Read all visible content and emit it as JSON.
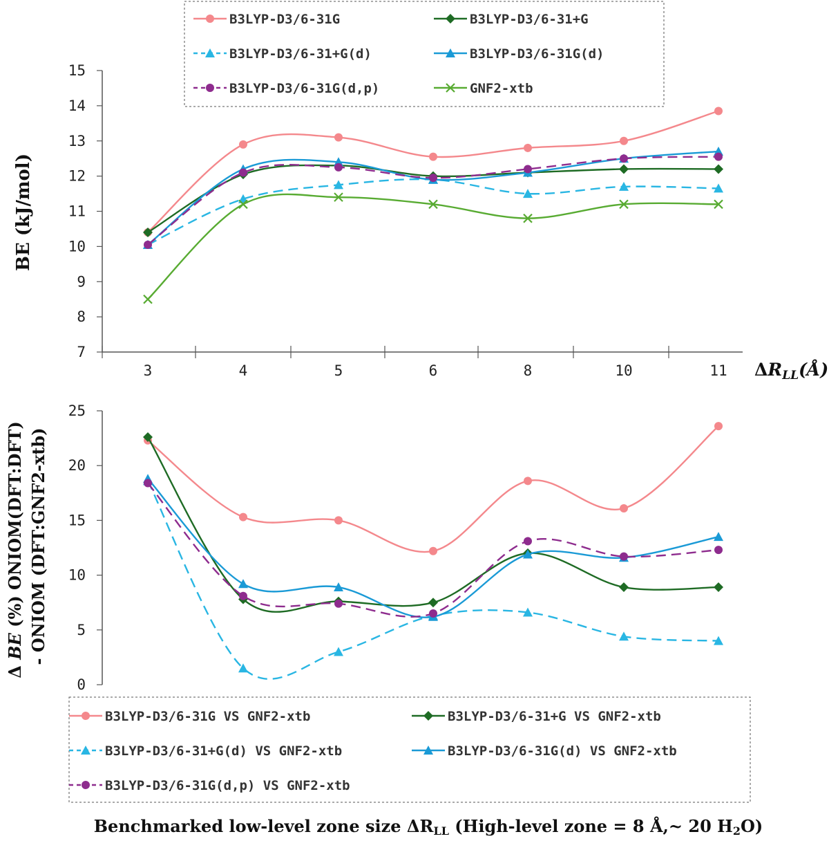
{
  "figure": {
    "bottom_xlabel": {
      "prefix": "Benchmarked low-level zone size ΔR",
      "sub": "LL",
      "middle": " (High-level zone = 8 Å,~ 20 H",
      "sub2": "2",
      "suffix": "O)"
    }
  },
  "chart_data": [
    {
      "type": "line",
      "id": "top",
      "title": "",
      "ylabel": "BE (kJ/mol)",
      "xlabel_delta": "Δ",
      "xlabel_r": "R",
      "xlabel_sub": "LL",
      "xlabel_unit": "(Å)",
      "categories": [
        "3",
        "4",
        "5",
        "6",
        "8",
        "10",
        "11"
      ],
      "ylim": [
        7,
        15
      ],
      "yticks": [
        "7",
        "8",
        "9",
        "10",
        "11",
        "12",
        "13",
        "14",
        "15"
      ],
      "legend_position": "top-center",
      "series": [
        {
          "name": "B3LYP-D3/6-31G",
          "color": "#f4888c",
          "marker": "circle",
          "dashed": false,
          "values": [
            10.4,
            12.9,
            13.1,
            12.55,
            12.8,
            13.0,
            13.85
          ]
        },
        {
          "name": "B3LYP-D3/6-31+G",
          "color": "#1e6b24",
          "marker": "diamond",
          "dashed": false,
          "values": [
            10.4,
            12.05,
            12.3,
            12.0,
            12.1,
            12.2,
            12.2
          ]
        },
        {
          "name": "B3LYP-D3/6-31+G(d)",
          "color": "#29b6e3",
          "marker": "triangle",
          "dashed": true,
          "values": [
            10.05,
            11.35,
            11.75,
            11.9,
            11.5,
            11.7,
            11.65
          ]
        },
        {
          "name": "B3LYP-D3/6-31G(d)",
          "color": "#1a9ad6",
          "marker": "triangle",
          "dashed": false,
          "values": [
            10.05,
            12.2,
            12.4,
            11.9,
            12.1,
            12.5,
            12.7
          ]
        },
        {
          "name": "B3LYP-D3/6-31G(d,p)",
          "color": "#8e2c8e",
          "marker": "circle",
          "dashed": true,
          "values": [
            10.05,
            12.1,
            12.25,
            11.95,
            12.2,
            12.5,
            12.55
          ]
        },
        {
          "name": "GNF2-xtb",
          "color": "#58ab32",
          "marker": "x",
          "dashed": false,
          "values": [
            8.5,
            11.2,
            11.4,
            11.2,
            10.8,
            11.2,
            11.2
          ]
        }
      ]
    },
    {
      "type": "line",
      "id": "bottom",
      "title": "",
      "ylabel_line1_prefix": "Δ ",
      "ylabel_line1_italic": "BE",
      "ylabel_line1_suffix": " (%) ONIOM(DFT:DFT)",
      "ylabel_line2": "- ONIOM (DFT:GNF2-xtb)",
      "categories": [
        "3",
        "4",
        "5",
        "6",
        "8",
        "10",
        "11"
      ],
      "ylim": [
        0,
        25
      ],
      "yticks": [
        "0",
        "5",
        "10",
        "15",
        "20",
        "25"
      ],
      "legend_position": "bottom",
      "series": [
        {
          "name": "B3LYP-D3/6-31G VS GNF2-xtb",
          "color": "#f4888c",
          "marker": "circle",
          "dashed": false,
          "values": [
            22.3,
            15.3,
            15.0,
            12.2,
            18.6,
            16.1,
            23.6
          ]
        },
        {
          "name": "B3LYP-D3/6-31+G VS GNF2-xtb",
          "color": "#1e6b24",
          "marker": "diamond",
          "dashed": false,
          "values": [
            22.6,
            7.8,
            7.6,
            7.5,
            12.0,
            8.9,
            8.9
          ]
        },
        {
          "name": "B3LYP-D3/6-31+G(d) VS GNF2-xtb",
          "color": "#29b6e3",
          "marker": "triangle",
          "dashed": true,
          "values": [
            18.6,
            1.5,
            3.0,
            6.3,
            6.6,
            4.4,
            4.0
          ]
        },
        {
          "name": "B3LYP-D3/6-31G(d) VS GNF2-xtb",
          "color": "#1a9ad6",
          "marker": "triangle",
          "dashed": false,
          "values": [
            18.8,
            9.2,
            8.9,
            6.2,
            11.9,
            11.6,
            13.5
          ]
        },
        {
          "name": "B3LYP-D3/6-31G(d,p) VS GNF2-xtb",
          "color": "#8e2c8e",
          "marker": "circle",
          "dashed": true,
          "values": [
            18.4,
            8.1,
            7.4,
            6.5,
            13.1,
            11.7,
            12.3
          ]
        }
      ]
    }
  ]
}
